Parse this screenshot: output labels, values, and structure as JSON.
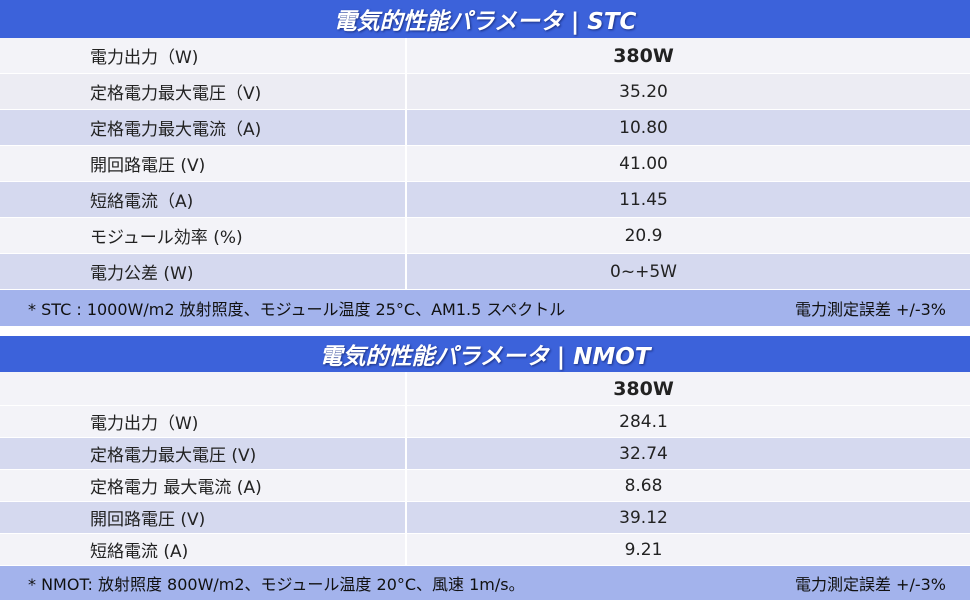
{
  "sections": [
    {
      "title": "電気的性能パラメータ | STC",
      "rows": [
        [
          "電力出力（W)",
          "380W"
        ],
        [
          "定格電力最大電圧（V)",
          "35.20"
        ],
        [
          "定格電力最大電流（A)",
          "10.80"
        ],
        [
          "開回路電圧 (V)",
          "41.00"
        ],
        [
          "短絡電流（A)",
          "11.45"
        ],
        [
          "モジュール効率 (%)",
          "20.9"
        ],
        [
          "電力公差 (W)",
          "0~+5W"
        ]
      ],
      "footnote": "* STC : 1000W/m2 放射照度、モジュール温度 25°C、AM1.5 スペクトル",
      "footnote_right": "電力測定誤差 +/-3%"
    },
    {
      "title": "電気的性能パラメータ |  NMOT",
      "subheader": "380W",
      "rows": [
        [
          "電力出力（W)",
          "284.1"
        ],
        [
          "定格電力最大電圧 (V)",
          "32.74"
        ],
        [
          "定格電力 最大電流 (A)",
          "8.68"
        ],
        [
          "開回路電圧 (V)",
          "39.12"
        ],
        [
          "短絡電流 (A)",
          "9.21"
        ]
      ],
      "footnote": "* NMOT: 放射照度 800W/m2、モジュール温度 20°C、風速 1m/s。",
      "footnote_right": "電力測定誤差 +/-3%"
    }
  ]
}
